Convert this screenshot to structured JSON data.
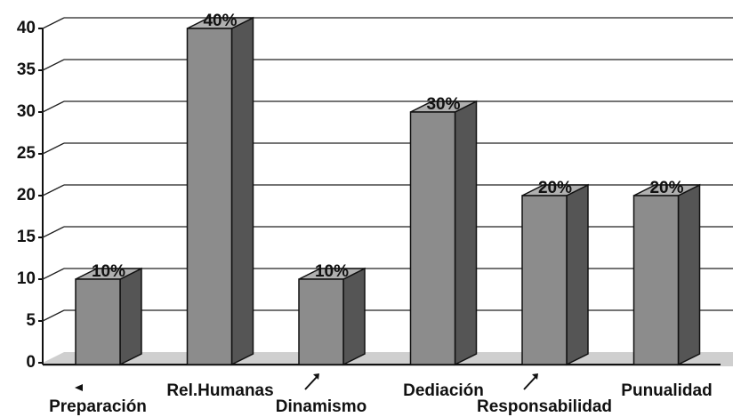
{
  "chart_data": {
    "type": "bar3d",
    "categories": [
      "Preparación",
      "Rel.Humanas",
      "Dinamismo",
      "Dediación",
      "Responsabilidad",
      "Punualidad"
    ],
    "values": [
      10,
      40,
      10,
      30,
      20,
      20
    ],
    "value_labels": [
      "10%",
      "40%",
      "10%",
      "30%",
      "20%",
      "20%"
    ],
    "color": "#8c8c8c",
    "ylim": [
      0,
      40
    ],
    "yticks": [
      0,
      5,
      10,
      15,
      20,
      25,
      30,
      35,
      40
    ],
    "grid": true
  }
}
